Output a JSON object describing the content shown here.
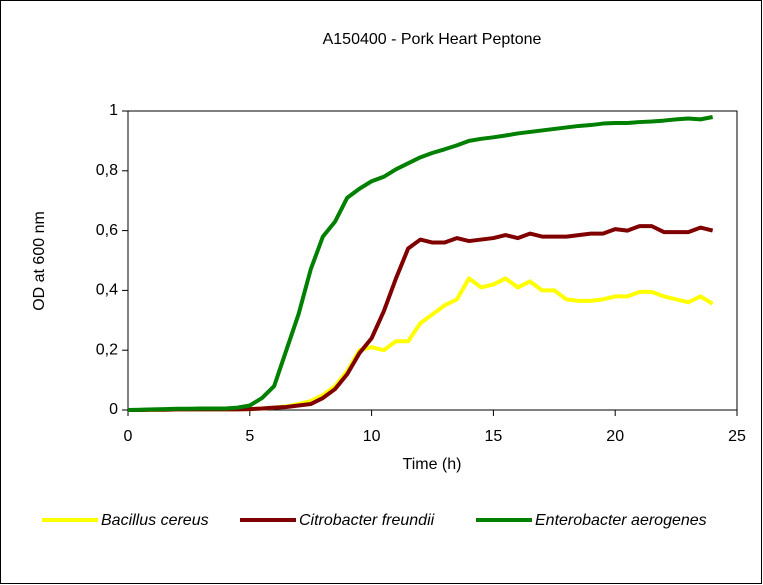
{
  "chart_data": {
    "type": "line",
    "title": "A150400 - Pork Heart Peptone",
    "x_label": "Time (h)",
    "y_label": "OD at 600 nm",
    "x": [
      0,
      0.5,
      1,
      1.5,
      2,
      2.5,
      3,
      3.5,
      4,
      4.5,
      5,
      5.5,
      6,
      6.5,
      7,
      7.5,
      8,
      8.5,
      9,
      9.5,
      10,
      10.5,
      11,
      11.5,
      12,
      12.5,
      13,
      13.5,
      14,
      14.5,
      15,
      15.5,
      16,
      16.5,
      17,
      17.5,
      18,
      18.5,
      19,
      19.5,
      20,
      20.5,
      21,
      21.5,
      22,
      22.5,
      23,
      23.5,
      24
    ],
    "series": [
      {
        "name": "Bacillus cereus",
        "color": "#ffff00",
        "values": [
          0,
          0,
          0.001,
          0.001,
          0.002,
          0.002,
          0.002,
          0.002,
          0.002,
          0.002,
          0.003,
          0.005,
          0.008,
          0.012,
          0.02,
          0.03,
          0.05,
          0.08,
          0.13,
          0.2,
          0.21,
          0.2,
          0.23,
          0.23,
          0.29,
          0.32,
          0.35,
          0.37,
          0.44,
          0.41,
          0.42,
          0.44,
          0.41,
          0.43,
          0.4,
          0.4,
          0.37,
          0.365,
          0.365,
          0.37,
          0.38,
          0.38,
          0.395,
          0.395,
          0.38,
          0.37,
          0.36,
          0.38,
          0.355
        ]
      },
      {
        "name": "Citrobacter freundii",
        "color": "#800000",
        "values": [
          0,
          0,
          0.001,
          0.001,
          0.002,
          0.002,
          0.002,
          0.002,
          0.002,
          0.002,
          0.003,
          0.005,
          0.008,
          0.01,
          0.015,
          0.02,
          0.04,
          0.07,
          0.12,
          0.19,
          0.24,
          0.33,
          0.44,
          0.54,
          0.57,
          0.56,
          0.56,
          0.575,
          0.565,
          0.57,
          0.575,
          0.585,
          0.575,
          0.59,
          0.58,
          0.58,
          0.58,
          0.585,
          0.59,
          0.59,
          0.605,
          0.6,
          0.615,
          0.615,
          0.595,
          0.595,
          0.595,
          0.61,
          0.6
        ]
      },
      {
        "name": "Enterobacter aerogenes",
        "color": "#008000",
        "values": [
          0,
          0.001,
          0.002,
          0.003,
          0.004,
          0.004,
          0.005,
          0.005,
          0.005,
          0.008,
          0.015,
          0.04,
          0.08,
          0.2,
          0.32,
          0.47,
          0.58,
          0.63,
          0.71,
          0.74,
          0.765,
          0.78,
          0.805,
          0.825,
          0.845,
          0.86,
          0.872,
          0.885,
          0.9,
          0.907,
          0.912,
          0.918,
          0.925,
          0.93,
          0.935,
          0.94,
          0.945,
          0.95,
          0.953,
          0.958,
          0.96,
          0.96,
          0.963,
          0.965,
          0.968,
          0.972,
          0.975,
          0.972,
          0.98
        ]
      }
    ],
    "xlim": [
      0,
      25
    ],
    "xticks": [
      0,
      5,
      10,
      15,
      20,
      25
    ],
    "ylim": [
      0,
      1
    ],
    "yticks": [
      0,
      {
        "value": 0.2,
        "label": "0,2"
      },
      {
        "value": 0.4,
        "label": "0,4"
      },
      {
        "value": 0.6,
        "label": "0,6"
      },
      {
        "value": 0.8,
        "label": "0,8"
      },
      1
    ],
    "legend": "bottom"
  }
}
